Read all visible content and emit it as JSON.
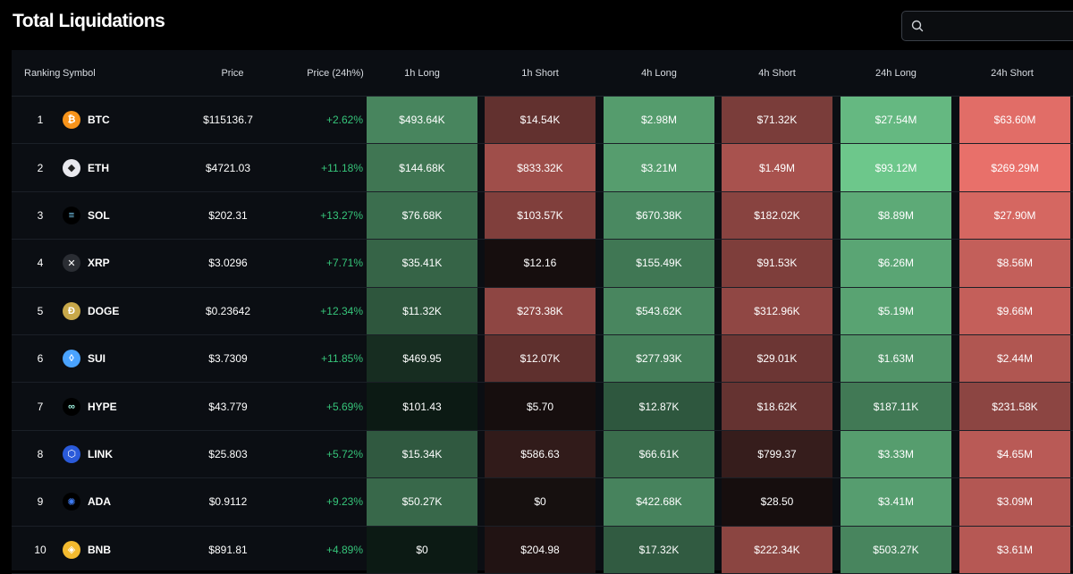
{
  "page": {
    "title": "Total Liquidations"
  },
  "search": {
    "placeholder": ""
  },
  "colors": {
    "positive": "#36c57a",
    "long_accent": "#5cc98b",
    "short_accent": "#e8736e"
  },
  "table": {
    "columns": [
      "Ranking",
      "Symbol",
      "Price",
      "Price (24h%)",
      "1h Long",
      "1h Short",
      "4h Long",
      "4h Short",
      "24h Long",
      "24h Short"
    ],
    "rows": [
      {
        "rank": "1",
        "symbol": "BTC",
        "icon": "bitcoin-icon",
        "price": "$115136.7",
        "change": "+2.62%",
        "h1_long": "$493.64K",
        "h1_short": "$14.54K",
        "h4_long": "$2.98M",
        "h4_short": "$71.32K",
        "h24_long": "$27.54M",
        "h24_short": "$63.60M"
      },
      {
        "rank": "2",
        "symbol": "ETH",
        "icon": "ethereum-icon",
        "price": "$4721.03",
        "change": "+11.18%",
        "h1_long": "$144.68K",
        "h1_short": "$833.32K",
        "h4_long": "$3.21M",
        "h4_short": "$1.49M",
        "h24_long": "$93.12M",
        "h24_short": "$269.29M"
      },
      {
        "rank": "3",
        "symbol": "SOL",
        "icon": "solana-icon",
        "price": "$202.31",
        "change": "+13.27%",
        "h1_long": "$76.68K",
        "h1_short": "$103.57K",
        "h4_long": "$670.38K",
        "h4_short": "$182.02K",
        "h24_long": "$8.89M",
        "h24_short": "$27.90M"
      },
      {
        "rank": "4",
        "symbol": "XRP",
        "icon": "xrp-icon",
        "price": "$3.0296",
        "change": "+7.71%",
        "h1_long": "$35.41K",
        "h1_short": "$12.16",
        "h4_long": "$155.49K",
        "h4_short": "$91.53K",
        "h24_long": "$6.26M",
        "h24_short": "$8.56M"
      },
      {
        "rank": "5",
        "symbol": "DOGE",
        "icon": "dogecoin-icon",
        "price": "$0.23642",
        "change": "+12.34%",
        "h1_long": "$11.32K",
        "h1_short": "$273.38K",
        "h4_long": "$543.62K",
        "h4_short": "$312.96K",
        "h24_long": "$5.19M",
        "h24_short": "$9.66M"
      },
      {
        "rank": "6",
        "symbol": "SUI",
        "icon": "sui-icon",
        "price": "$3.7309",
        "change": "+11.85%",
        "h1_long": "$469.95",
        "h1_short": "$12.07K",
        "h4_long": "$277.93K",
        "h4_short": "$29.01K",
        "h24_long": "$1.63M",
        "h24_short": "$2.44M"
      },
      {
        "rank": "7",
        "symbol": "HYPE",
        "icon": "hyperliquid-icon",
        "price": "$43.779",
        "change": "+5.69%",
        "h1_long": "$101.43",
        "h1_short": "$5.70",
        "h4_long": "$12.87K",
        "h4_short": "$18.62K",
        "h24_long": "$187.11K",
        "h24_short": "$231.58K"
      },
      {
        "rank": "8",
        "symbol": "LINK",
        "icon": "chainlink-icon",
        "price": "$25.803",
        "change": "+5.72%",
        "h1_long": "$15.34K",
        "h1_short": "$586.63",
        "h4_long": "$66.61K",
        "h4_short": "$799.37",
        "h24_long": "$3.33M",
        "h24_short": "$4.65M"
      },
      {
        "rank": "9",
        "symbol": "ADA",
        "icon": "cardano-icon",
        "price": "$0.9112",
        "change": "+9.23%",
        "h1_long": "$50.27K",
        "h1_short": "$0",
        "h4_long": "$422.68K",
        "h4_short": "$28.50",
        "h24_long": "$3.41M",
        "h24_short": "$3.09M"
      },
      {
        "rank": "10",
        "symbol": "BNB",
        "icon": "bnb-icon",
        "price": "$891.81",
        "change": "+4.89%",
        "h1_long": "$0",
        "h1_short": "$204.98",
        "h4_long": "$17.32K",
        "h4_short": "$222.34K",
        "h24_long": "$503.27K",
        "h24_short": "$3.61M"
      }
    ]
  }
}
